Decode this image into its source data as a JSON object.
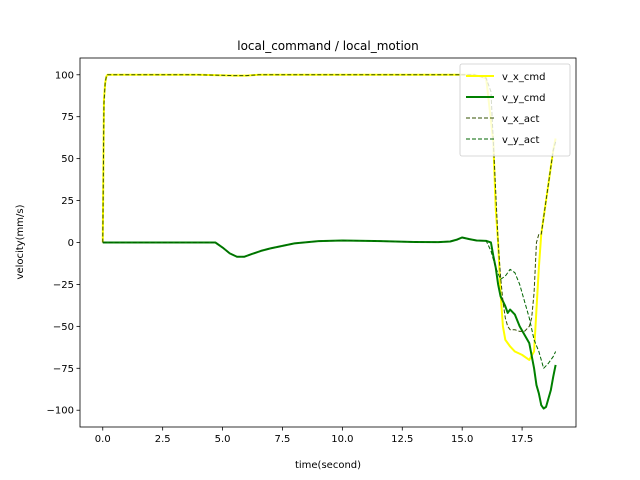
{
  "chart_data": {
    "type": "line",
    "title": "local_command / local_motion",
    "xlabel": "time(second)",
    "ylabel": "velocity(mm/s)",
    "xlim": [
      -0.95,
      19.75
    ],
    "ylim": [
      -110,
      110
    ],
    "xticks": [
      0.0,
      2.5,
      5.0,
      7.5,
      10.0,
      12.5,
      15.0,
      17.5
    ],
    "xtick_labels": [
      "0.0",
      "2.5",
      "5.0",
      "7.5",
      "10.0",
      "12.5",
      "15.0",
      "17.5"
    ],
    "yticks": [
      100,
      75,
      50,
      25,
      0,
      -25,
      -50,
      -75,
      -100
    ],
    "ytick_labels": [
      "100",
      "75",
      "50",
      "25",
      "0",
      "−25",
      "−50",
      "−75",
      "−100"
    ],
    "grid": false,
    "legend_position": "upper right",
    "series": [
      {
        "name": "v_x_cmd",
        "color": "#ffff00",
        "style": "solid",
        "x": [
          0.0,
          0.05,
          0.1,
          0.15,
          0.2,
          0.5,
          2.0,
          4.0,
          5.5,
          6.0,
          6.5,
          8.0,
          10.0,
          12.0,
          14.0,
          15.5,
          16.0,
          16.3,
          16.4,
          16.5,
          16.6,
          16.7,
          16.8,
          16.9,
          17.0,
          17.2,
          17.5,
          17.8,
          18.0,
          18.1,
          18.2,
          18.3,
          18.4,
          18.5,
          18.6,
          18.7,
          18.8,
          18.9
        ],
        "y": [
          0,
          85,
          95,
          99,
          100,
          100,
          100,
          100,
          99.5,
          99.5,
          100,
          100,
          100,
          100,
          100,
          100,
          98,
          60,
          20,
          0,
          -30,
          -50,
          -58,
          -60,
          -62,
          -65,
          -67,
          -70,
          -65,
          -40,
          -15,
          5,
          15,
          25,
          35,
          45,
          55,
          62
        ]
      },
      {
        "name": "v_y_cmd",
        "color": "#008000",
        "style": "solid",
        "x": [
          0.0,
          1.0,
          2.0,
          3.0,
          4.0,
          4.7,
          5.0,
          5.3,
          5.6,
          5.9,
          6.2,
          6.6,
          7.0,
          7.5,
          8.0,
          9.0,
          10.0,
          11.0,
          12.0,
          13.0,
          14.0,
          14.5,
          14.8,
          15.0,
          15.3,
          15.6,
          16.0,
          16.2,
          16.3,
          16.4,
          16.5,
          16.6,
          16.7,
          16.8,
          16.9,
          17.0,
          17.2,
          17.4,
          17.6,
          17.8,
          18.0,
          18.1,
          18.2,
          18.3,
          18.4,
          18.5,
          18.6,
          18.7,
          18.8,
          18.9
        ],
        "y": [
          0,
          0,
          0,
          0,
          0,
          0,
          -3,
          -6.5,
          -8.5,
          -8.5,
          -7,
          -5,
          -3.5,
          -2,
          -0.5,
          0.8,
          1.2,
          1,
          0.7,
          0.3,
          0.2,
          0.6,
          1.8,
          3,
          2,
          1.2,
          1,
          0,
          -8,
          -15,
          -25,
          -32,
          -35,
          -38,
          -42,
          -40,
          -43,
          -50,
          -55,
          -60,
          -75,
          -85,
          -90,
          -97,
          -99,
          -98,
          -93,
          -88,
          -80,
          -73
        ]
      },
      {
        "name": "v_x_act",
        "color": "#335000",
        "style": "dashed",
        "x": [
          0.0,
          0.05,
          0.1,
          0.15,
          0.2,
          0.5,
          2.0,
          4.0,
          5.5,
          6.0,
          6.5,
          8.0,
          10.0,
          12.0,
          14.0,
          15.5,
          16.0,
          16.2,
          16.3,
          16.4,
          16.5,
          16.6,
          16.7,
          16.8,
          16.9,
          17.0,
          17.2,
          17.4,
          17.6,
          17.8,
          17.9,
          18.0,
          18.1,
          18.2,
          18.3,
          18.4,
          18.5,
          18.6,
          18.7,
          18.8,
          18.9
        ],
        "y": [
          0,
          83,
          95,
          99,
          100,
          100,
          100,
          100,
          99.5,
          99.5,
          100,
          100,
          100,
          100,
          100,
          100,
          98,
          90,
          60,
          30,
          0,
          -20,
          -35,
          -45,
          -50,
          -52,
          -52,
          -53,
          -53,
          -50,
          -45,
          -30,
          0,
          5,
          5,
          15,
          25,
          35,
          45,
          55,
          60
        ]
      },
      {
        "name": "v_y_act",
        "color": "#006400",
        "style": "dashed",
        "x": [
          0.0,
          1.0,
          2.0,
          3.0,
          4.0,
          4.7,
          5.0,
          5.3,
          5.6,
          5.9,
          6.2,
          6.6,
          7.0,
          7.5,
          8.0,
          9.0,
          10.0,
          11.0,
          12.0,
          13.0,
          14.0,
          14.5,
          14.8,
          15.0,
          15.3,
          15.6,
          16.0,
          16.2,
          16.4,
          16.6,
          16.8,
          17.0,
          17.2,
          17.4,
          17.6,
          17.8,
          18.0,
          18.2,
          18.4,
          18.6,
          18.8,
          18.9
        ],
        "y": [
          0,
          0,
          0,
          0,
          0,
          0,
          -3,
          -6.5,
          -8.5,
          -8.5,
          -7,
          -5,
          -3.5,
          -2,
          -0.5,
          0.8,
          1.2,
          1,
          0.7,
          0.3,
          0.2,
          0.6,
          1.8,
          3,
          2,
          1.2,
          1,
          -5,
          -15,
          -22,
          -20,
          -16,
          -18,
          -25,
          -35,
          -45,
          -58,
          -65,
          -75,
          -72,
          -68,
          -65
        ]
      }
    ]
  }
}
